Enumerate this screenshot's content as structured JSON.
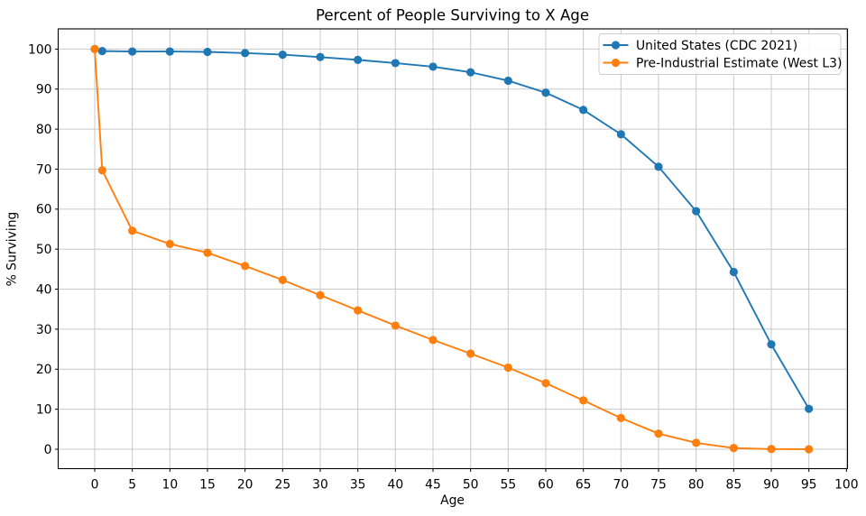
{
  "figure": {
    "background": "#ffffff"
  },
  "chart_data": {
    "type": "line",
    "title": "Percent of People Surviving to X Age",
    "xlabel": "Age",
    "ylabel": "% Surviving",
    "x": [
      0,
      1,
      5,
      10,
      15,
      20,
      25,
      30,
      35,
      40,
      45,
      50,
      55,
      60,
      65,
      70,
      75,
      80,
      85,
      90,
      95
    ],
    "series": [
      {
        "name": "United States (CDC 2021)",
        "color": "#1f77b4",
        "values": [
          100,
          99.5,
          99.4,
          99.4,
          99.3,
          99.0,
          98.6,
          98.0,
          97.3,
          96.5,
          95.6,
          94.2,
          92.1,
          89.1,
          84.8,
          78.7,
          70.6,
          59.5,
          44.3,
          26.2,
          10.1
        ]
      },
      {
        "name": "Pre-Industrial Estimate (West L3)",
        "color": "#ff7f0e",
        "values": [
          100,
          69.7,
          54.6,
          51.3,
          49.1,
          45.8,
          42.3,
          38.5,
          34.7,
          30.9,
          27.3,
          23.9,
          20.4,
          16.5,
          12.2,
          7.8,
          3.9,
          1.6,
          0.3,
          0.05,
          0.0
        ]
      }
    ],
    "xticks": [
      0,
      5,
      10,
      15,
      20,
      25,
      30,
      35,
      40,
      45,
      50,
      55,
      60,
      65,
      70,
      75,
      80,
      85,
      90,
      95,
      100
    ],
    "yticks": [
      0,
      10,
      20,
      30,
      40,
      50,
      60,
      70,
      80,
      90,
      100
    ],
    "xlim": [
      -4.86,
      100.14
    ],
    "ylim": [
      -4.85,
      105.05
    ],
    "grid": true,
    "legend_position": "upper right",
    "marker": "circle",
    "grid_color": "#c8c8c8",
    "axis_color": "#000000",
    "background": "#ffffff"
  }
}
